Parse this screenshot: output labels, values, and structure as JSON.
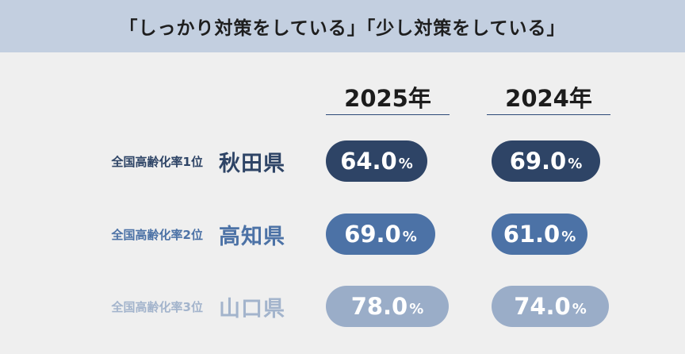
{
  "header": {
    "title": "「しっかり対策をしている」「少し対策をしている」"
  },
  "chart_data": {
    "type": "table",
    "columns": [
      "2025年",
      "2024年"
    ],
    "unit": "%",
    "rows": [
      {
        "rank_label": "全国高齢化率1位",
        "prefecture": "秋田県",
        "values": [
          "64.0",
          "69.0"
        ],
        "color": "#2e4466",
        "label_color": "#2e4466"
      },
      {
        "rank_label": "全国高齢化率2位",
        "prefecture": "高知県",
        "values": [
          "69.0",
          "61.0"
        ],
        "color": "#4c72a6",
        "label_color": "#4c72a6"
      },
      {
        "rank_label": "全国高齢化率3位",
        "prefecture": "山口県",
        "values": [
          "78.0",
          "74.0"
        ],
        "color": "#9aadc8",
        "label_color": "#a3b4cc"
      }
    ]
  }
}
